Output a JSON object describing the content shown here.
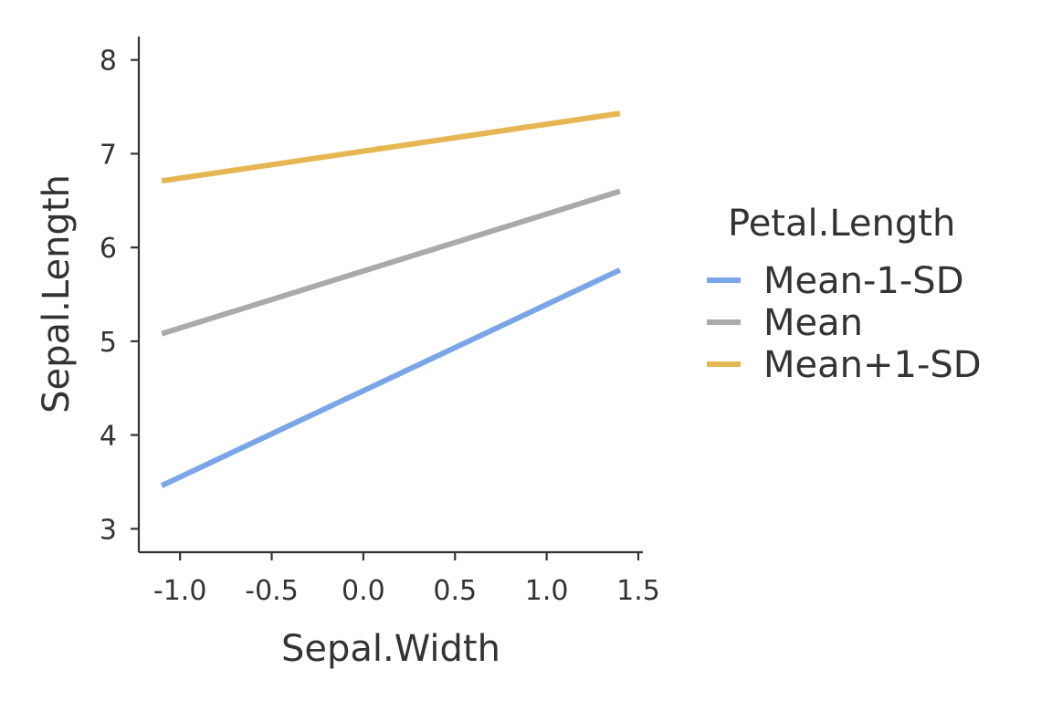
{
  "chart_data": {
    "type": "line",
    "xlabel": "Sepal.Width",
    "ylabel": "Sepal.Length",
    "xlim": [
      -1.225,
      1.525
    ],
    "ylim": [
      2.75,
      8.25
    ],
    "x_ticks": [
      -1.0,
      -0.5,
      0.0,
      0.5,
      1.0,
      1.5
    ],
    "x_tick_labels": [
      "-1.0",
      "-0.5",
      "0.0",
      "0.5",
      "1.0",
      "1.5"
    ],
    "y_ticks": [
      3,
      4,
      5,
      6,
      7,
      8
    ],
    "y_tick_labels": [
      "3",
      "4",
      "5",
      "6",
      "7",
      "8"
    ],
    "legend": {
      "title": "Petal.Length",
      "placement": "right"
    },
    "grid": false,
    "series": [
      {
        "name": "Mean-1-SD",
        "color": "#7aa6e8",
        "x": [
          -1.1,
          1.4
        ],
        "y": [
          3.46,
          5.76
        ]
      },
      {
        "name": "Mean",
        "color": "#aaaaaa",
        "x": [
          -1.1,
          1.4
        ],
        "y": [
          5.08,
          6.6
        ]
      },
      {
        "name": "Mean+1-SD",
        "color": "#e5b652",
        "x": [
          -1.1,
          1.4
        ],
        "y": [
          6.71,
          7.43
        ]
      }
    ]
  }
}
